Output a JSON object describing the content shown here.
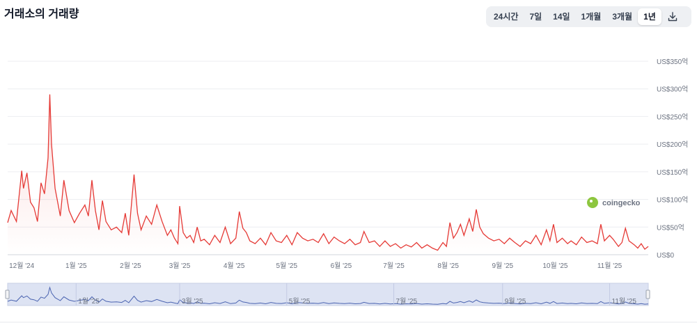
{
  "header": {
    "title": "거래소의 거래량",
    "ranges": [
      "24시간",
      "7일",
      "14일",
      "1개월",
      "3개월",
      "1년"
    ],
    "active_range": "1년",
    "download_icon": "download-icon"
  },
  "watermark": {
    "text": "coingecko",
    "color": "#8dc63f"
  },
  "colors": {
    "line": "#e53935",
    "navigator": "#4a63b0",
    "navigator_fill": "#dde3f3"
  },
  "chart_data": {
    "type": "area",
    "y_ticks": [
      "US$0",
      "US$50억",
      "US$100억",
      "US$150억",
      "US$200억",
      "US$250억",
      "US$300억",
      "US$350억"
    ],
    "ylim": [
      0,
      350
    ],
    "xlim": [
      "2024-11-23",
      "2025-11-23"
    ],
    "x_ticks": [
      {
        "date": "2024-12-01",
        "label": "12월 '24"
      },
      {
        "date": "2025-01-01",
        "label": "1월 '25"
      },
      {
        "date": "2025-02-01",
        "label": "2월 '25"
      },
      {
        "date": "2025-03-01",
        "label": "3월 '25"
      },
      {
        "date": "2025-04-01",
        "label": "4월 '25"
      },
      {
        "date": "2025-05-01",
        "label": "5월 '25"
      },
      {
        "date": "2025-06-01",
        "label": "6월 '25"
      },
      {
        "date": "2025-07-01",
        "label": "7월 '25"
      },
      {
        "date": "2025-08-01",
        "label": "8월 '25"
      },
      {
        "date": "2025-09-01",
        "label": "9월 '25"
      },
      {
        "date": "2025-10-01",
        "label": "10월 '25"
      },
      {
        "date": "2025-11-01",
        "label": "11월 '25"
      }
    ],
    "navigator_ticks": [
      {
        "date": "2025-01-01",
        "label": "1월 '25"
      },
      {
        "date": "2025-03-01",
        "label": "3월 '25"
      },
      {
        "date": "2025-05-01",
        "label": "5월 '25"
      },
      {
        "date": "2025-07-01",
        "label": "7월 '25"
      },
      {
        "date": "2025-09-01",
        "label": "9월 '25"
      },
      {
        "date": "2025-11-01",
        "label": "11월 '25"
      }
    ],
    "series": [
      {
        "points": [
          [
            "2024-11-23",
            58
          ],
          [
            "2024-11-25",
            80
          ],
          [
            "2024-11-28",
            60
          ],
          [
            "2024-12-01",
            152
          ],
          [
            "2024-12-02",
            120
          ],
          [
            "2024-12-04",
            148
          ],
          [
            "2024-12-06",
            95
          ],
          [
            "2024-12-08",
            85
          ],
          [
            "2024-12-10",
            60
          ],
          [
            "2024-12-12",
            130
          ],
          [
            "2024-12-14",
            110
          ],
          [
            "2024-12-16",
            175
          ],
          [
            "2024-12-17",
            290
          ],
          [
            "2024-12-18",
            200
          ],
          [
            "2024-12-20",
            120
          ],
          [
            "2024-12-23",
            70
          ],
          [
            "2024-12-25",
            135
          ],
          [
            "2024-12-28",
            80
          ],
          [
            "2024-12-31",
            58
          ],
          [
            "2025-01-03",
            75
          ],
          [
            "2025-01-06",
            90
          ],
          [
            "2025-01-08",
            70
          ],
          [
            "2025-01-10",
            135
          ],
          [
            "2025-01-12",
            80
          ],
          [
            "2025-01-14",
            45
          ],
          [
            "2025-01-16",
            98
          ],
          [
            "2025-01-18",
            60
          ],
          [
            "2025-01-21",
            45
          ],
          [
            "2025-01-24",
            50
          ],
          [
            "2025-01-27",
            40
          ],
          [
            "2025-01-29",
            75
          ],
          [
            "2025-01-31",
            35
          ],
          [
            "2025-02-03",
            145
          ],
          [
            "2025-02-05",
            75
          ],
          [
            "2025-02-07",
            45
          ],
          [
            "2025-02-10",
            70
          ],
          [
            "2025-02-13",
            55
          ],
          [
            "2025-02-16",
            90
          ],
          [
            "2025-02-19",
            60
          ],
          [
            "2025-02-22",
            35
          ],
          [
            "2025-02-24",
            45
          ],
          [
            "2025-02-26",
            30
          ],
          [
            "2025-02-28",
            20
          ],
          [
            "2025-03-01",
            88
          ],
          [
            "2025-03-03",
            40
          ],
          [
            "2025-03-05",
            30
          ],
          [
            "2025-03-07",
            35
          ],
          [
            "2025-03-09",
            22
          ],
          [
            "2025-03-11",
            50
          ],
          [
            "2025-03-13",
            25
          ],
          [
            "2025-03-15",
            28
          ],
          [
            "2025-03-18",
            18
          ],
          [
            "2025-03-21",
            35
          ],
          [
            "2025-03-24",
            22
          ],
          [
            "2025-03-27",
            50
          ],
          [
            "2025-03-30",
            20
          ],
          [
            "2025-04-02",
            30
          ],
          [
            "2025-04-04",
            78
          ],
          [
            "2025-04-06",
            48
          ],
          [
            "2025-04-08",
            40
          ],
          [
            "2025-04-10",
            25
          ],
          [
            "2025-04-13",
            20
          ],
          [
            "2025-04-16",
            30
          ],
          [
            "2025-04-19",
            18
          ],
          [
            "2025-04-22",
            40
          ],
          [
            "2025-04-25",
            25
          ],
          [
            "2025-04-28",
            22
          ],
          [
            "2025-05-01",
            35
          ],
          [
            "2025-05-04",
            18
          ],
          [
            "2025-05-07",
            40
          ],
          [
            "2025-05-10",
            30
          ],
          [
            "2025-05-13",
            25
          ],
          [
            "2025-05-16",
            28
          ],
          [
            "2025-05-19",
            22
          ],
          [
            "2025-05-22",
            38
          ],
          [
            "2025-05-25",
            20
          ],
          [
            "2025-05-28",
            32
          ],
          [
            "2025-05-31",
            25
          ],
          [
            "2025-06-03",
            20
          ],
          [
            "2025-06-06",
            28
          ],
          [
            "2025-06-09",
            18
          ],
          [
            "2025-06-12",
            22
          ],
          [
            "2025-06-14",
            42
          ],
          [
            "2025-06-17",
            22
          ],
          [
            "2025-06-20",
            25
          ],
          [
            "2025-06-23",
            15
          ],
          [
            "2025-06-26",
            25
          ],
          [
            "2025-06-29",
            15
          ],
          [
            "2025-07-02",
            20
          ],
          [
            "2025-07-05",
            12
          ],
          [
            "2025-07-08",
            18
          ],
          [
            "2025-07-11",
            14
          ],
          [
            "2025-07-14",
            22
          ],
          [
            "2025-07-17",
            12
          ],
          [
            "2025-07-20",
            18
          ],
          [
            "2025-07-23",
            12
          ],
          [
            "2025-07-26",
            8
          ],
          [
            "2025-07-29",
            22
          ],
          [
            "2025-07-31",
            15
          ],
          [
            "2025-08-02",
            58
          ],
          [
            "2025-08-04",
            30
          ],
          [
            "2025-08-06",
            40
          ],
          [
            "2025-08-08",
            55
          ],
          [
            "2025-08-10",
            35
          ],
          [
            "2025-08-13",
            65
          ],
          [
            "2025-08-15",
            42
          ],
          [
            "2025-08-17",
            82
          ],
          [
            "2025-08-19",
            50
          ],
          [
            "2025-08-21",
            38
          ],
          [
            "2025-08-24",
            30
          ],
          [
            "2025-08-27",
            25
          ],
          [
            "2025-08-30",
            28
          ],
          [
            "2025-09-02",
            20
          ],
          [
            "2025-09-05",
            30
          ],
          [
            "2025-09-08",
            22
          ],
          [
            "2025-09-11",
            15
          ],
          [
            "2025-09-14",
            25
          ],
          [
            "2025-09-17",
            20
          ],
          [
            "2025-09-20",
            35
          ],
          [
            "2025-09-23",
            18
          ],
          [
            "2025-09-26",
            45
          ],
          [
            "2025-09-28",
            25
          ],
          [
            "2025-09-30",
            55
          ],
          [
            "2025-10-02",
            22
          ],
          [
            "2025-10-05",
            30
          ],
          [
            "2025-10-08",
            20
          ],
          [
            "2025-10-10",
            25
          ],
          [
            "2025-10-13",
            18
          ],
          [
            "2025-10-16",
            32
          ],
          [
            "2025-10-19",
            22
          ],
          [
            "2025-10-22",
            25
          ],
          [
            "2025-10-25",
            20
          ],
          [
            "2025-10-27",
            55
          ],
          [
            "2025-10-29",
            25
          ],
          [
            "2025-11-01",
            35
          ],
          [
            "2025-11-03",
            28
          ],
          [
            "2025-11-06",
            15
          ],
          [
            "2025-11-08",
            22
          ],
          [
            "2025-11-10",
            48
          ],
          [
            "2025-11-12",
            25
          ],
          [
            "2025-11-15",
            18
          ],
          [
            "2025-11-17",
            12
          ],
          [
            "2025-11-19",
            20
          ],
          [
            "2025-11-21",
            10
          ],
          [
            "2025-11-23",
            15
          ]
        ]
      }
    ]
  }
}
